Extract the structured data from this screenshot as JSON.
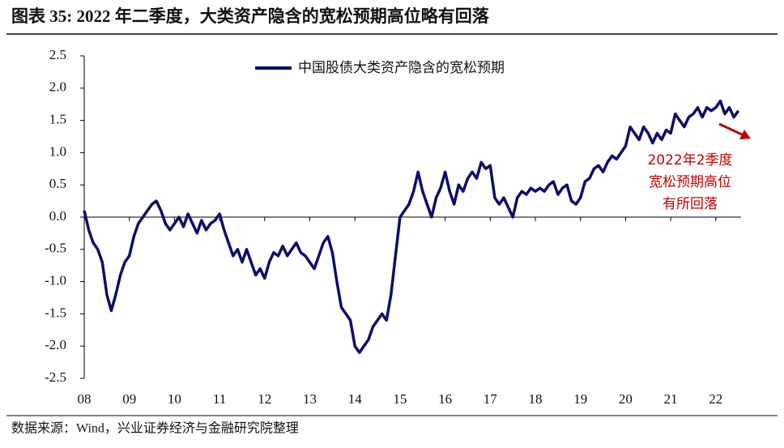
{
  "chart_data": {
    "type": "line",
    "title": "图表 35:  2022 年二季度，大类资产隐含的宽松预期高位略有回落",
    "source": "数据来源：Wind，兴业证券经济与金融研究院整理",
    "annotation": [
      "2022年2季度",
      "宽松预期高位",
      "有所回落"
    ],
    "annotation_color": "#c00000",
    "x": [
      2008.0,
      2008.1,
      2008.2,
      2008.3,
      2008.4,
      2008.5,
      2008.6,
      2008.7,
      2008.8,
      2008.9,
      2009.0,
      2009.1,
      2009.2,
      2009.3,
      2009.4,
      2009.5,
      2009.6,
      2009.7,
      2009.8,
      2009.9,
      2010.0,
      2010.1,
      2010.2,
      2010.3,
      2010.4,
      2010.5,
      2010.6,
      2010.7,
      2010.8,
      2010.9,
      2011.0,
      2011.1,
      2011.2,
      2011.3,
      2011.4,
      2011.5,
      2011.6,
      2011.7,
      2011.8,
      2011.9,
      2012.0,
      2012.1,
      2012.2,
      2012.3,
      2012.4,
      2012.5,
      2012.6,
      2012.7,
      2012.8,
      2012.9,
      2013.0,
      2013.1,
      2013.2,
      2013.3,
      2013.4,
      2013.5,
      2013.6,
      2013.7,
      2013.8,
      2013.9,
      2014.0,
      2014.1,
      2014.2,
      2014.3,
      2014.4,
      2014.5,
      2014.6,
      2014.7,
      2014.8,
      2014.9,
      2015.0,
      2015.1,
      2015.2,
      2015.3,
      2015.4,
      2015.5,
      2015.6,
      2015.7,
      2015.8,
      2015.9,
      2016.0,
      2016.1,
      2016.2,
      2016.3,
      2016.4,
      2016.5,
      2016.6,
      2016.7,
      2016.8,
      2016.9,
      2017.0,
      2017.1,
      2017.2,
      2017.3,
      2017.4,
      2017.5,
      2017.6,
      2017.7,
      2017.8,
      2017.9,
      2018.0,
      2018.1,
      2018.2,
      2018.3,
      2018.4,
      2018.5,
      2018.6,
      2018.7,
      2018.8,
      2018.9,
      2019.0,
      2019.1,
      2019.2,
      2019.3,
      2019.4,
      2019.5,
      2019.6,
      2019.7,
      2019.8,
      2019.9,
      2020.0,
      2020.1,
      2020.2,
      2020.3,
      2020.4,
      2020.5,
      2020.6,
      2020.7,
      2020.8,
      2020.9,
      2021.0,
      2021.1,
      2021.2,
      2021.3,
      2021.4,
      2021.5,
      2021.6,
      2021.7,
      2021.8,
      2021.9,
      2022.0,
      2022.1,
      2022.2,
      2022.3,
      2022.4,
      2022.5
    ],
    "series": [
      {
        "name": "中国股债大类资产隐含的宽松预期",
        "color": "#0d0d6b",
        "values": [
          0.1,
          -0.2,
          -0.4,
          -0.5,
          -0.7,
          -1.2,
          -1.45,
          -1.2,
          -0.9,
          -0.7,
          -0.6,
          -0.3,
          -0.1,
          0.0,
          0.1,
          0.2,
          0.25,
          0.1,
          -0.1,
          -0.2,
          -0.1,
          0.0,
          -0.15,
          0.05,
          -0.1,
          -0.25,
          -0.05,
          -0.2,
          -0.1,
          -0.05,
          0.05,
          -0.2,
          -0.4,
          -0.6,
          -0.5,
          -0.7,
          -0.5,
          -0.7,
          -0.9,
          -0.8,
          -0.95,
          -0.7,
          -0.55,
          -0.6,
          -0.45,
          -0.6,
          -0.5,
          -0.4,
          -0.55,
          -0.6,
          -0.7,
          -0.8,
          -0.6,
          -0.4,
          -0.3,
          -0.55,
          -1.0,
          -1.4,
          -1.5,
          -1.6,
          -2.0,
          -2.1,
          -2.0,
          -1.9,
          -1.7,
          -1.6,
          -1.5,
          -1.6,
          -1.2,
          -0.6,
          0.0,
          0.1,
          0.2,
          0.4,
          0.7,
          0.4,
          0.2,
          0.0,
          0.3,
          0.45,
          0.7,
          0.4,
          0.2,
          0.5,
          0.4,
          0.6,
          0.7,
          0.6,
          0.85,
          0.75,
          0.8,
          0.3,
          0.2,
          0.3,
          0.15,
          0.0,
          0.3,
          0.4,
          0.35,
          0.45,
          0.4,
          0.45,
          0.4,
          0.5,
          0.55,
          0.35,
          0.45,
          0.5,
          0.25,
          0.2,
          0.3,
          0.55,
          0.6,
          0.75,
          0.8,
          0.7,
          0.85,
          0.95,
          0.9,
          1.0,
          1.1,
          1.4,
          1.3,
          1.2,
          1.4,
          1.3,
          1.15,
          1.3,
          1.2,
          1.35,
          1.3,
          1.6,
          1.5,
          1.4,
          1.55,
          1.6,
          1.7,
          1.55,
          1.7,
          1.65,
          1.7,
          1.8,
          1.6,
          1.7,
          1.55,
          1.65
        ]
      }
    ],
    "xlim": [
      2008,
      2022.56
    ],
    "xticks": [
      {
        "value": 2008,
        "label": "08"
      },
      {
        "value": 2009,
        "label": "09"
      },
      {
        "value": 2010,
        "label": "10"
      },
      {
        "value": 2011,
        "label": "11"
      },
      {
        "value": 2012,
        "label": "12"
      },
      {
        "value": 2013,
        "label": "13"
      },
      {
        "value": 2014,
        "label": "14"
      },
      {
        "value": 2015,
        "label": "15"
      },
      {
        "value": 2016,
        "label": "16"
      },
      {
        "value": 2017,
        "label": "17"
      },
      {
        "value": 2018,
        "label": "18"
      },
      {
        "value": 2019,
        "label": "19"
      },
      {
        "value": 2020,
        "label": "20"
      },
      {
        "value": 2021,
        "label": "21"
      },
      {
        "value": 2022,
        "label": "22"
      }
    ],
    "ylim": [
      -2.5,
      2.5
    ],
    "yticks": [
      -2.5,
      {
        "value": -2,
        "label": "-2.0"
      },
      -1.5,
      {
        "value": -1,
        "label": "-1.0"
      },
      -0.5,
      {
        "value": 0,
        "label": "0.0"
      },
      0.5,
      {
        "value": 1,
        "label": "1.0"
      },
      1.5,
      {
        "value": 2,
        "label": "2.0"
      },
      2.5
    ]
  }
}
